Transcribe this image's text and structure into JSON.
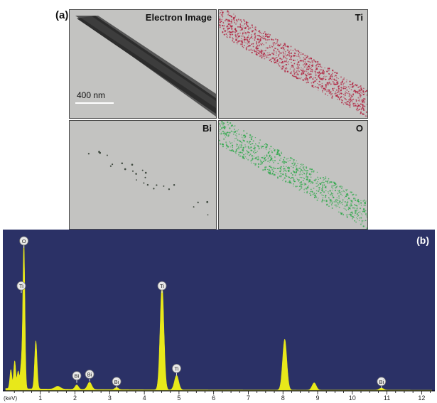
{
  "figure": {
    "panel_a_label": "(a)",
    "panel_b_label": "(b)",
    "maps": [
      {
        "title": "Electron Image",
        "kind": "electron"
      },
      {
        "title": "Ti",
        "kind": "dots",
        "color": "#b01e3c"
      },
      {
        "title": "Bi",
        "kind": "sparse",
        "color": "#404a40"
      },
      {
        "title": "O",
        "kind": "dots",
        "color": "#2ea84a"
      }
    ],
    "scale_bar_label": "400 nm"
  },
  "chart_data": {
    "type": "line",
    "xlabel": "(keV)",
    "xlim": [
      0,
      12.3
    ],
    "ylim": [
      0,
      100
    ],
    "xticks": [
      1,
      2,
      3,
      4,
      5,
      6,
      7,
      8,
      9,
      10,
      11,
      12
    ],
    "fill_color": "#e8e81a",
    "background_color": "#2b3166",
    "peaks": [
      {
        "x": 0.15,
        "h": 13,
        "w": 0.03
      },
      {
        "x": 0.26,
        "h": 19,
        "w": 0.03
      },
      {
        "x": 0.36,
        "h": 12,
        "w": 0.03
      },
      {
        "x": 0.45,
        "h": 16,
        "w": 0.03
      },
      {
        "x": 0.525,
        "h": 100,
        "w": 0.03
      },
      {
        "x": 0.87,
        "h": 33,
        "w": 0.035
      },
      {
        "x": 1.5,
        "h": 2,
        "w": 0.08
      },
      {
        "x": 2.05,
        "h": 3,
        "w": 0.05
      },
      {
        "x": 2.42,
        "h": 5,
        "w": 0.06
      },
      {
        "x": 3.2,
        "h": 1.5,
        "w": 0.05
      },
      {
        "x": 4.51,
        "h": 72,
        "w": 0.055
      },
      {
        "x": 4.93,
        "h": 10,
        "w": 0.06
      },
      {
        "x": 8.05,
        "h": 35,
        "w": 0.06
      },
      {
        "x": 8.9,
        "h": 5,
        "w": 0.06
      },
      {
        "x": 10.84,
        "h": 1.5,
        "w": 0.06
      }
    ],
    "annotations": [
      {
        "label": "O",
        "x": 0.525,
        "y": 103
      },
      {
        "label": "Ti",
        "x": 0.45,
        "y": 72
      },
      {
        "label": "Bi",
        "x": 2.05,
        "y": 10
      },
      {
        "label": "Bi",
        "x": 2.42,
        "y": 11
      },
      {
        "label": "Bi",
        "x": 3.2,
        "y": 6
      },
      {
        "label": "Ti",
        "x": 4.51,
        "y": 72
      },
      {
        "label": "Ti",
        "x": 4.93,
        "y": 15
      },
      {
        "label": "Bi",
        "x": 10.84,
        "y": 6
      }
    ]
  }
}
